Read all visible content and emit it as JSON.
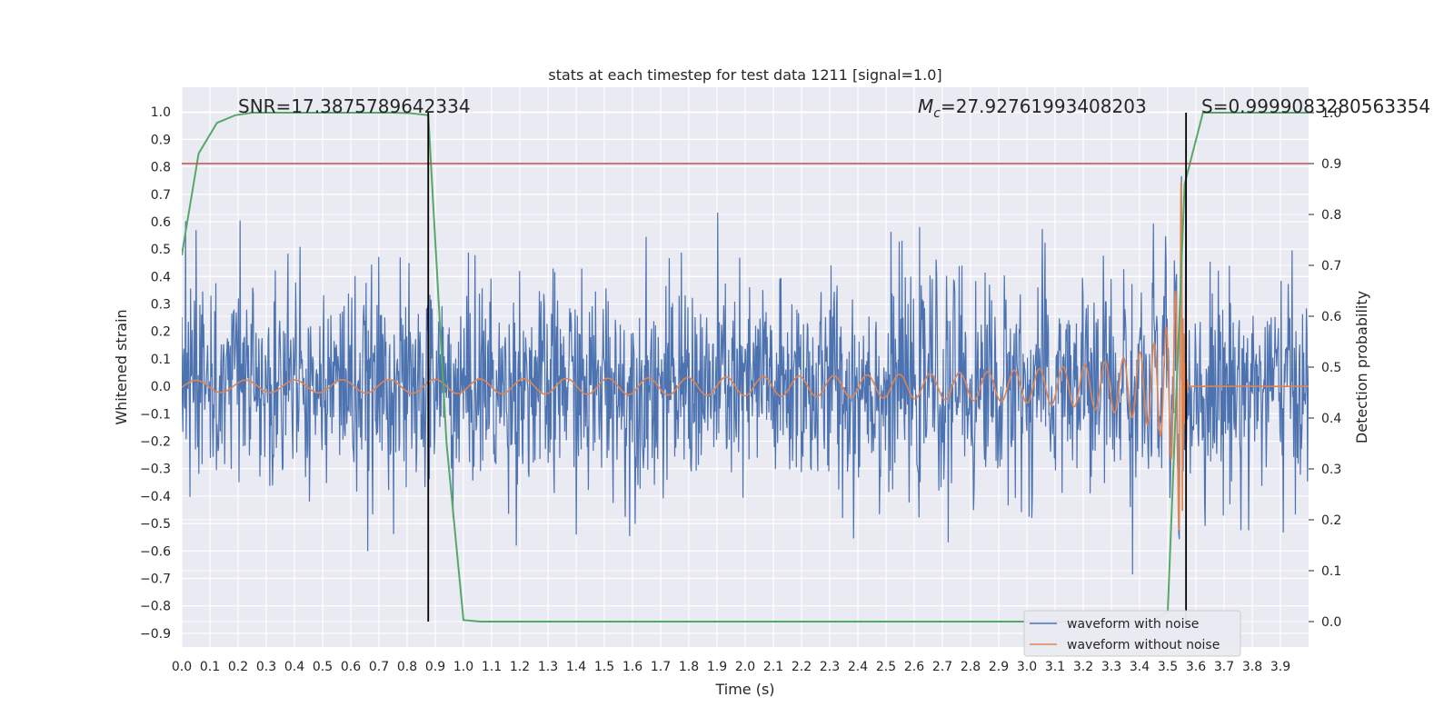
{
  "chart_data": {
    "type": "line",
    "title": "stats at each timestep for test data 1211 [signal=1.0]",
    "xlabel": "Time (s)",
    "ylabel": "Whitened strain",
    "ylabel_right": "Detection probability",
    "xlim": [
      0.0,
      4.0
    ],
    "ylim": [
      -0.95,
      1.09
    ],
    "ylim_right": [
      -0.05,
      1.05
    ],
    "x_ticks": [
      "0.0",
      "0.1",
      "0.2",
      "0.3",
      "0.4",
      "0.5",
      "0.6",
      "0.7",
      "0.8",
      "0.9",
      "1.0",
      "1.1",
      "1.2",
      "1.3",
      "1.4",
      "1.5",
      "1.6",
      "1.7",
      "1.8",
      "1.9",
      "2.0",
      "2.1",
      "2.2",
      "2.3",
      "2.4",
      "2.5",
      "2.6",
      "2.7",
      "2.8",
      "2.9",
      "3.0",
      "3.1",
      "3.2",
      "3.3",
      "3.4",
      "3.5",
      "3.6",
      "3.7",
      "3.8",
      "3.9"
    ],
    "y_ticks": [
      "1.0",
      "0.9",
      "0.8",
      "0.7",
      "0.6",
      "0.5",
      "0.4",
      "0.3",
      "0.2",
      "0.1",
      "0.0",
      "−0.1",
      "−0.2",
      "−0.3",
      "−0.4",
      "−0.5",
      "−0.6",
      "−0.7",
      "−0.8",
      "−0.9"
    ],
    "y_ticks_right": [
      "1.0",
      "0.9",
      "0.8",
      "0.7",
      "0.6",
      "0.5",
      "0.4",
      "0.3",
      "0.2",
      "0.1",
      "0.0"
    ],
    "grid": true,
    "annotations": {
      "snr": "SNR=17.3875789642334",
      "mc_symbol": "M",
      "mc_sub": "c",
      "mc_value": "=27.92761993408203",
      "s": "S=0.9999083280563354"
    },
    "threshold_right": 0.9,
    "vertical_lines_x": [
      0.875,
      3.565
    ],
    "series": [
      {
        "name": "waveform with noise",
        "color": "#4c72b0",
        "kind": "noise",
        "sigma": 0.19,
        "x_range": [
          0.0,
          4.0
        ]
      },
      {
        "name": "waveform without noise",
        "color": "#dd8452",
        "kind": "chirp",
        "t_merger": 3.55,
        "x_range": [
          0.0,
          4.0
        ]
      },
      {
        "color": "#55a868",
        "axis": "right",
        "x": [
          0.0,
          0.06,
          0.125,
          0.19,
          0.25,
          0.31,
          0.375,
          0.44,
          0.5,
          0.56,
          0.625,
          0.69,
          0.75,
          0.81,
          0.875,
          0.94,
          1.0,
          1.06,
          1.125,
          1.5,
          2.0,
          2.5,
          3.0,
          3.44,
          3.5,
          3.56,
          3.625,
          3.69,
          3.75,
          3.81,
          3.875,
          3.94,
          4.0
        ],
        "y": [
          0.72,
          0.92,
          0.98,
          0.995,
          1.0,
          1.0,
          1.0,
          1.0,
          1.0,
          1.0,
          1.0,
          1.0,
          1.0,
          0.999,
          0.995,
          0.35,
          0.003,
          0.0,
          0.0,
          0.0,
          0.0,
          0.0,
          0.0,
          0.0,
          0.02,
          0.86,
          1.0,
          1.0,
          1.0,
          1.0,
          1.0,
          1.0,
          1.0
        ]
      }
    ],
    "legend": {
      "placement": "lower-right",
      "entries": [
        "waveform with noise",
        "waveform without noise"
      ]
    }
  }
}
